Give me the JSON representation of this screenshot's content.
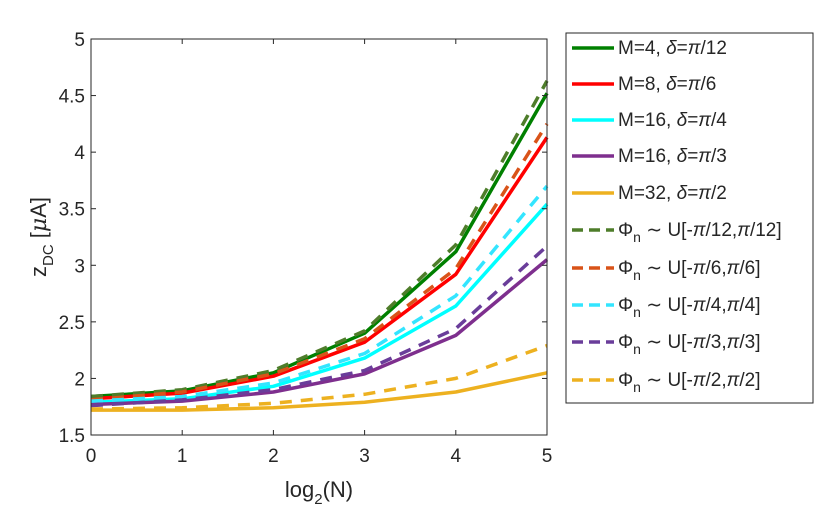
{
  "chart_data": {
    "type": "line",
    "title": "",
    "xlabel": {
      "base": "log",
      "sub": "2",
      "rest": "(N)"
    },
    "ylabel": {
      "base": "z",
      "sub": "DC",
      "rest": " [",
      "greek": "μ",
      "unit": "A]"
    },
    "xlim": [
      0,
      5
    ],
    "ylim": [
      1.5,
      5
    ],
    "xticks": [
      "0",
      "1",
      "2",
      "3",
      "4",
      "5"
    ],
    "yticks": [
      "1.5",
      "2",
      "2.5",
      "3",
      "3.5",
      "4",
      "4.5",
      "5"
    ],
    "grid": false,
    "legend_position": "outside-right",
    "x": [
      0,
      1,
      2,
      3,
      4,
      5
    ],
    "series": [
      {
        "name": "M=4, δ=π/12",
        "legend": {
          "pre": "M=4, ",
          "delta": "δ",
          "mid": "=",
          "pi": "π",
          "post": "/12"
        },
        "color": "#008000",
        "dash": "solid",
        "values": [
          1.84,
          1.89,
          2.05,
          2.4,
          3.12,
          4.52
        ]
      },
      {
        "name": "M=8, δ=π/6",
        "legend": {
          "pre": "M=8, ",
          "delta": "δ",
          "mid": "=",
          "pi": "π",
          "post": "/6"
        },
        "color": "#ff0000",
        "dash": "solid",
        "values": [
          1.82,
          1.87,
          2.02,
          2.32,
          2.92,
          4.13
        ]
      },
      {
        "name": "M=16, δ=π/4",
        "legend": {
          "pre": "M=16, ",
          "delta": "δ",
          "mid": "=",
          "pi": "π",
          "post": "/4"
        },
        "color": "#00ffff",
        "dash": "solid",
        "values": [
          1.79,
          1.82,
          1.93,
          2.18,
          2.64,
          3.54
        ]
      },
      {
        "name": "M=16, δ=π/3",
        "legend": {
          "pre": "M=16, ",
          "delta": "δ",
          "mid": "=",
          "pi": "π",
          "post": "/3"
        },
        "color": "#7e2f8e",
        "dash": "solid",
        "values": [
          1.77,
          1.8,
          1.88,
          2.04,
          2.38,
          3.05
        ]
      },
      {
        "name": "M=32, δ=π/2",
        "legend": {
          "pre": "M=32, ",
          "delta": "δ",
          "mid": "=",
          "pi": "π",
          "post": "/2"
        },
        "color": "#edb120",
        "dash": "solid",
        "values": [
          1.72,
          1.72,
          1.74,
          1.79,
          1.88,
          2.05
        ]
      },
      {
        "name": "Φn ~ U[-π/12,π/12]",
        "legend": {
          "phi": "Φ",
          "sub": "n",
          "sim": " ∼ U[-",
          "pi1": "π",
          "a": "/12,",
          "pi2": "π",
          "b": "/12]"
        },
        "color": "#4e7d2a",
        "dash": "dashed",
        "values": [
          1.84,
          1.9,
          2.07,
          2.42,
          3.18,
          4.63
        ]
      },
      {
        "name": "Φn ~ U[-π/6,π/6]",
        "legend": {
          "phi": "Φ",
          "sub": "n",
          "sim": " ∼ U[-",
          "pi1": "π",
          "a": "/6,",
          "pi2": "π",
          "b": "/6]"
        },
        "color": "#d95319",
        "dash": "dashed",
        "values": [
          1.81,
          1.88,
          2.04,
          2.35,
          2.97,
          4.25
        ]
      },
      {
        "name": "Φn ~ U[-π/4,π/4]",
        "legend": {
          "phi": "Φ",
          "sub": "n",
          "sim": " ∼ U[-",
          "pi1": "π",
          "a": "/4,",
          "pi2": "π",
          "b": "/4]"
        },
        "color": "#33e5ff",
        "dash": "dashed",
        "values": [
          1.8,
          1.84,
          1.96,
          2.22,
          2.73,
          3.7
        ]
      },
      {
        "name": "Φn ~ U[-π/3,π/3]",
        "legend": {
          "phi": "Φ",
          "sub": "n",
          "sim": " ∼ U[-",
          "pi1": "π",
          "a": "/3,",
          "pi2": "π",
          "b": "/3]"
        },
        "color": "#6a3d9a",
        "dash": "dashed",
        "values": [
          1.76,
          1.81,
          1.9,
          2.07,
          2.44,
          3.17
        ]
      },
      {
        "name": "Φn ~ U[-π/2,π/2]",
        "legend": {
          "phi": "Φ",
          "sub": "n",
          "sim": " ∼ U[-",
          "pi1": "π",
          "a": "/2,",
          "pi2": "π",
          "b": "/2]"
        },
        "color": "#edb120",
        "dash": "dashed",
        "values": [
          1.73,
          1.74,
          1.78,
          1.86,
          2.0,
          2.29
        ]
      }
    ]
  }
}
